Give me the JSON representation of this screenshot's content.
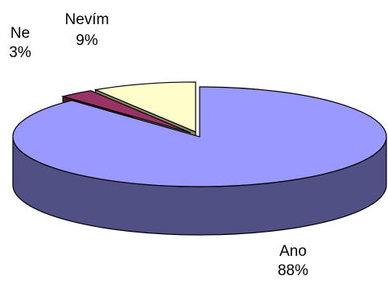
{
  "chart_data": {
    "type": "pie",
    "style": "3d-exploded",
    "slices": [
      {
        "name": "Ano",
        "value": 88,
        "label": "88%",
        "color": "#9999ff",
        "side_color": "#505085"
      },
      {
        "name": "Ne",
        "value": 3,
        "label": "3%",
        "color": "#993366",
        "side_color": "#551530"
      },
      {
        "name": "Nevím",
        "value": 9,
        "label": "9%",
        "color": "#ffffcc",
        "side_color": "#8a8a66"
      }
    ],
    "legend": "none"
  }
}
